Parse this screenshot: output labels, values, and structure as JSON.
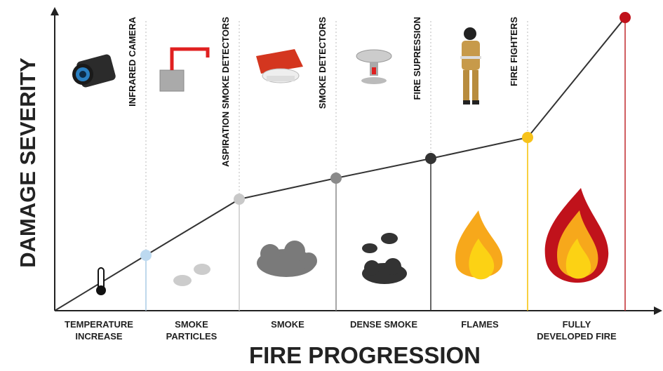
{
  "y_axis_label": "DAMAGE SEVERITY",
  "x_axis_label": "FIRE PROGRESSION",
  "stages": [
    {
      "lines": [
        "TEMPERATURE",
        "INCREASE"
      ]
    },
    {
      "lines": [
        "SMOKE",
        "PARTICLES"
      ]
    },
    {
      "lines": [
        "SMOKE"
      ]
    },
    {
      "lines": [
        "DENSE SMOKE"
      ]
    },
    {
      "lines": [
        "FLAMES"
      ]
    },
    {
      "lines": [
        "FULLY",
        "DEVELOPED FIRE"
      ]
    }
  ],
  "detectors": [
    "INFRARED CAMERA",
    "ASPIRATION SMOKE DETECTORS",
    "SMOKE DETECTORS",
    "FIRE SUPRESSION",
    "FIRE FIGHTERS"
  ]
}
